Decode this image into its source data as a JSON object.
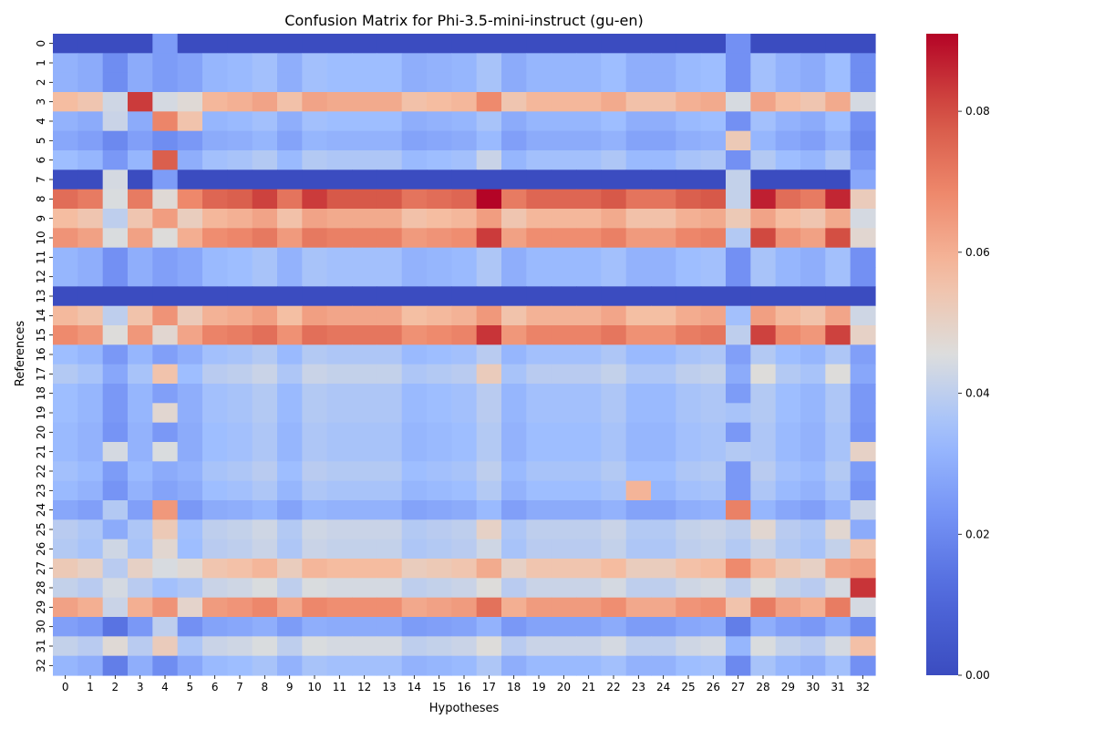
{
  "chart_data": {
    "type": "heatmap",
    "title": "Confusion Matrix for Phi-3.5-mini-instruct (gu-en)",
    "xlabel": "Hypotheses",
    "ylabel": "References",
    "x_categories": [
      "0",
      "1",
      "2",
      "3",
      "4",
      "5",
      "6",
      "7",
      "8",
      "9",
      "10",
      "11",
      "12",
      "13",
      "14",
      "15",
      "16",
      "17",
      "18",
      "19",
      "20",
      "21",
      "22",
      "23",
      "24",
      "25",
      "26",
      "27",
      "28",
      "29",
      "30",
      "31",
      "32"
    ],
    "y_categories": [
      "0",
      "1",
      "2",
      "3",
      "4",
      "5",
      "6",
      "7",
      "8",
      "9",
      "10",
      "11",
      "12",
      "13",
      "14",
      "15",
      "16",
      "17",
      "18",
      "19",
      "20",
      "21",
      "22",
      "23",
      "24",
      "25",
      "26",
      "27",
      "28",
      "29",
      "30",
      "31",
      "32"
    ],
    "colormap": "coolwarm",
    "colorbar": {
      "vmin": 0,
      "vmax": 0.091,
      "ticks": [
        0.0,
        0.02,
        0.04,
        0.06,
        0.08
      ],
      "tick_labels": [
        "0.00",
        "0.02",
        "0.04",
        "0.06",
        "0.08"
      ]
    },
    "row_baselines": [
      0.0,
      0.031,
      0.031,
      0.057,
      0.031,
      0.028,
      0.034,
      0.0,
      0.074,
      0.057,
      0.066,
      0.032,
      0.032,
      0.0,
      0.058,
      0.068,
      0.034,
      0.038,
      0.034,
      0.034,
      0.033,
      0.033,
      0.035,
      0.033,
      0.028,
      0.039,
      0.038,
      0.053,
      0.041,
      0.063,
      0.026,
      0.041,
      0.032
    ],
    "col_offsets": [
      0.0,
      -0.002,
      -0.01,
      -0.002,
      -0.006,
      -0.004,
      0.001,
      0.002,
      0.004,
      -0.001,
      0.004,
      0.003,
      0.003,
      0.003,
      -0.001,
      0.0,
      0.001,
      0.005,
      -0.002,
      0.001,
      0.001,
      0.001,
      0.003,
      -0.001,
      -0.001,
      0.002,
      0.003,
      -0.009,
      0.004,
      0.0,
      -0.002,
      0.003,
      -0.01
    ],
    "overrides": [
      {
        "r": 0,
        "c": 4,
        "v": 0.025
      },
      {
        "r": 0,
        "c": 27,
        "v": 0.022
      },
      {
        "r": 3,
        "c": 3,
        "v": 0.083
      },
      {
        "r": 3,
        "c": 4,
        "v": 0.044
      },
      {
        "r": 3,
        "c": 5,
        "v": 0.047
      },
      {
        "r": 3,
        "c": 17,
        "v": 0.068
      },
      {
        "r": 3,
        "c": 32,
        "v": 0.044
      },
      {
        "r": 4,
        "c": 4,
        "v": 0.069
      },
      {
        "r": 4,
        "c": 5,
        "v": 0.055
      },
      {
        "r": 4,
        "c": 2,
        "v": 0.042
      },
      {
        "r": 4,
        "c": 32,
        "v": 0.022
      },
      {
        "r": 5,
        "c": 27,
        "v": 0.053
      },
      {
        "r": 5,
        "c": 2,
        "v": 0.02
      },
      {
        "r": 5,
        "c": 4,
        "v": 0.021
      },
      {
        "r": 5,
        "c": 32,
        "v": 0.02
      },
      {
        "r": 6,
        "c": 4,
        "v": 0.077
      },
      {
        "r": 6,
        "c": 17,
        "v": 0.042
      },
      {
        "r": 6,
        "c": 27,
        "v": 0.022
      },
      {
        "r": 7,
        "c": 2,
        "v": 0.044
      },
      {
        "r": 7,
        "c": 4,
        "v": 0.025
      },
      {
        "r": 7,
        "c": 27,
        "v": 0.041
      },
      {
        "r": 7,
        "c": 32,
        "v": 0.028
      },
      {
        "r": 8,
        "c": 17,
        "v": 0.091
      },
      {
        "r": 8,
        "c": 28,
        "v": 0.087
      },
      {
        "r": 8,
        "c": 31,
        "v": 0.086
      },
      {
        "r": 8,
        "c": 2,
        "v": 0.045
      },
      {
        "r": 8,
        "c": 4,
        "v": 0.047
      },
      {
        "r": 8,
        "c": 27,
        "v": 0.041
      },
      {
        "r": 8,
        "c": 32,
        "v": 0.052
      },
      {
        "r": 8,
        "c": 10,
        "v": 0.083
      },
      {
        "r": 8,
        "c": 8,
        "v": 0.082
      },
      {
        "r": 9,
        "c": 2,
        "v": 0.04
      },
      {
        "r": 9,
        "c": 4,
        "v": 0.064
      },
      {
        "r": 9,
        "c": 27,
        "v": 0.053
      },
      {
        "r": 9,
        "c": 32,
        "v": 0.044
      },
      {
        "r": 10,
        "c": 17,
        "v": 0.083
      },
      {
        "r": 10,
        "c": 28,
        "v": 0.081
      },
      {
        "r": 10,
        "c": 31,
        "v": 0.08
      },
      {
        "r": 10,
        "c": 2,
        "v": 0.045
      },
      {
        "r": 10,
        "c": 4,
        "v": 0.046
      },
      {
        "r": 10,
        "c": 27,
        "v": 0.038
      },
      {
        "r": 10,
        "c": 32,
        "v": 0.048
      },
      {
        "r": 11,
        "c": 27,
        "v": 0.022
      },
      {
        "r": 12,
        "c": 27,
        "v": 0.022
      },
      {
        "r": 14,
        "c": 4,
        "v": 0.066
      },
      {
        "r": 14,
        "c": 2,
        "v": 0.04
      },
      {
        "r": 14,
        "c": 27,
        "v": 0.035
      },
      {
        "r": 14,
        "c": 32,
        "v": 0.043
      },
      {
        "r": 15,
        "c": 17,
        "v": 0.084
      },
      {
        "r": 15,
        "c": 28,
        "v": 0.082
      },
      {
        "r": 15,
        "c": 31,
        "v": 0.082
      },
      {
        "r": 15,
        "c": 2,
        "v": 0.046
      },
      {
        "r": 15,
        "c": 4,
        "v": 0.048
      },
      {
        "r": 15,
        "c": 27,
        "v": 0.04
      },
      {
        "r": 15,
        "c": 32,
        "v": 0.05
      },
      {
        "r": 16,
        "c": 4,
        "v": 0.026
      },
      {
        "r": 16,
        "c": 27,
        "v": 0.026
      },
      {
        "r": 16,
        "c": 32,
        "v": 0.026
      },
      {
        "r": 17,
        "c": 4,
        "v": 0.055
      },
      {
        "r": 17,
        "c": 17,
        "v": 0.052
      },
      {
        "r": 17,
        "c": 28,
        "v": 0.046
      },
      {
        "r": 17,
        "c": 31,
        "v": 0.046
      },
      {
        "r": 18,
        "c": 4,
        "v": 0.026
      },
      {
        "r": 18,
        "c": 27,
        "v": 0.025
      },
      {
        "r": 19,
        "c": 4,
        "v": 0.048
      },
      {
        "r": 19,
        "c": 27,
        "v": 0.036
      },
      {
        "r": 20,
        "c": 4,
        "v": 0.024
      },
      {
        "r": 20,
        "c": 27,
        "v": 0.024
      },
      {
        "r": 21,
        "c": 2,
        "v": 0.044
      },
      {
        "r": 21,
        "c": 4,
        "v": 0.045
      },
      {
        "r": 21,
        "c": 27,
        "v": 0.038
      },
      {
        "r": 21,
        "c": 32,
        "v": 0.05
      },
      {
        "r": 22,
        "c": 27,
        "v": 0.024
      },
      {
        "r": 23,
        "c": 23,
        "v": 0.059
      },
      {
        "r": 23,
        "c": 27,
        "v": 0.024
      },
      {
        "r": 24,
        "c": 4,
        "v": 0.065
      },
      {
        "r": 24,
        "c": 27,
        "v": 0.07
      },
      {
        "r": 24,
        "c": 2,
        "v": 0.038
      },
      {
        "r": 24,
        "c": 32,
        "v": 0.042
      },
      {
        "r": 25,
        "c": 4,
        "v": 0.053
      },
      {
        "r": 25,
        "c": 17,
        "v": 0.05
      },
      {
        "r": 25,
        "c": 28,
        "v": 0.048
      },
      {
        "r": 25,
        "c": 31,
        "v": 0.048
      },
      {
        "r": 25,
        "c": 27,
        "v": 0.04
      },
      {
        "r": 26,
        "c": 2,
        "v": 0.043
      },
      {
        "r": 26,
        "c": 4,
        "v": 0.048
      },
      {
        "r": 26,
        "c": 32,
        "v": 0.055
      },
      {
        "r": 26,
        "c": 27,
        "v": 0.038
      },
      {
        "r": 27,
        "c": 17,
        "v": 0.061
      },
      {
        "r": 27,
        "c": 27,
        "v": 0.068
      },
      {
        "r": 27,
        "c": 31,
        "v": 0.062
      },
      {
        "r": 27,
        "c": 32,
        "v": 0.064
      },
      {
        "r": 28,
        "c": 2,
        "v": 0.044
      },
      {
        "r": 28,
        "c": 32,
        "v": 0.084
      },
      {
        "r": 28,
        "c": 27,
        "v": 0.04
      },
      {
        "r": 29,
        "c": 17,
        "v": 0.073
      },
      {
        "r": 29,
        "c": 28,
        "v": 0.071
      },
      {
        "r": 29,
        "c": 31,
        "v": 0.071
      },
      {
        "r": 29,
        "c": 2,
        "v": 0.042
      },
      {
        "r": 29,
        "c": 4,
        "v": 0.066
      },
      {
        "r": 29,
        "c": 5,
        "v": 0.049
      },
      {
        "r": 29,
        "c": 27,
        "v": 0.055
      },
      {
        "r": 29,
        "c": 32,
        "v": 0.044
      },
      {
        "r": 30,
        "c": 2,
        "v": 0.014
      },
      {
        "r": 30,
        "c": 4,
        "v": 0.04
      },
      {
        "r": 30,
        "c": 32,
        "v": 0.021
      },
      {
        "r": 31,
        "c": 2,
        "v": 0.047
      },
      {
        "r": 31,
        "c": 4,
        "v": 0.052
      },
      {
        "r": 31,
        "c": 32,
        "v": 0.056
      },
      {
        "r": 32,
        "c": 2,
        "v": 0.017
      },
      {
        "r": 32,
        "c": 4,
        "v": 0.021
      },
      {
        "r": 32,
        "c": 27,
        "v": 0.02
      }
    ],
    "zero_rows": [
      0,
      7,
      13
    ],
    "zero_row_exceptions": [
      {
        "r": 0,
        "c": 4
      },
      {
        "r": 0,
        "c": 27
      },
      {
        "r": 7,
        "c": 2
      },
      {
        "r": 7,
        "c": 4
      },
      {
        "r": 7,
        "c": 27
      },
      {
        "r": 7,
        "c": 32
      }
    ],
    "grid": false,
    "legend": "colorbar-right"
  }
}
